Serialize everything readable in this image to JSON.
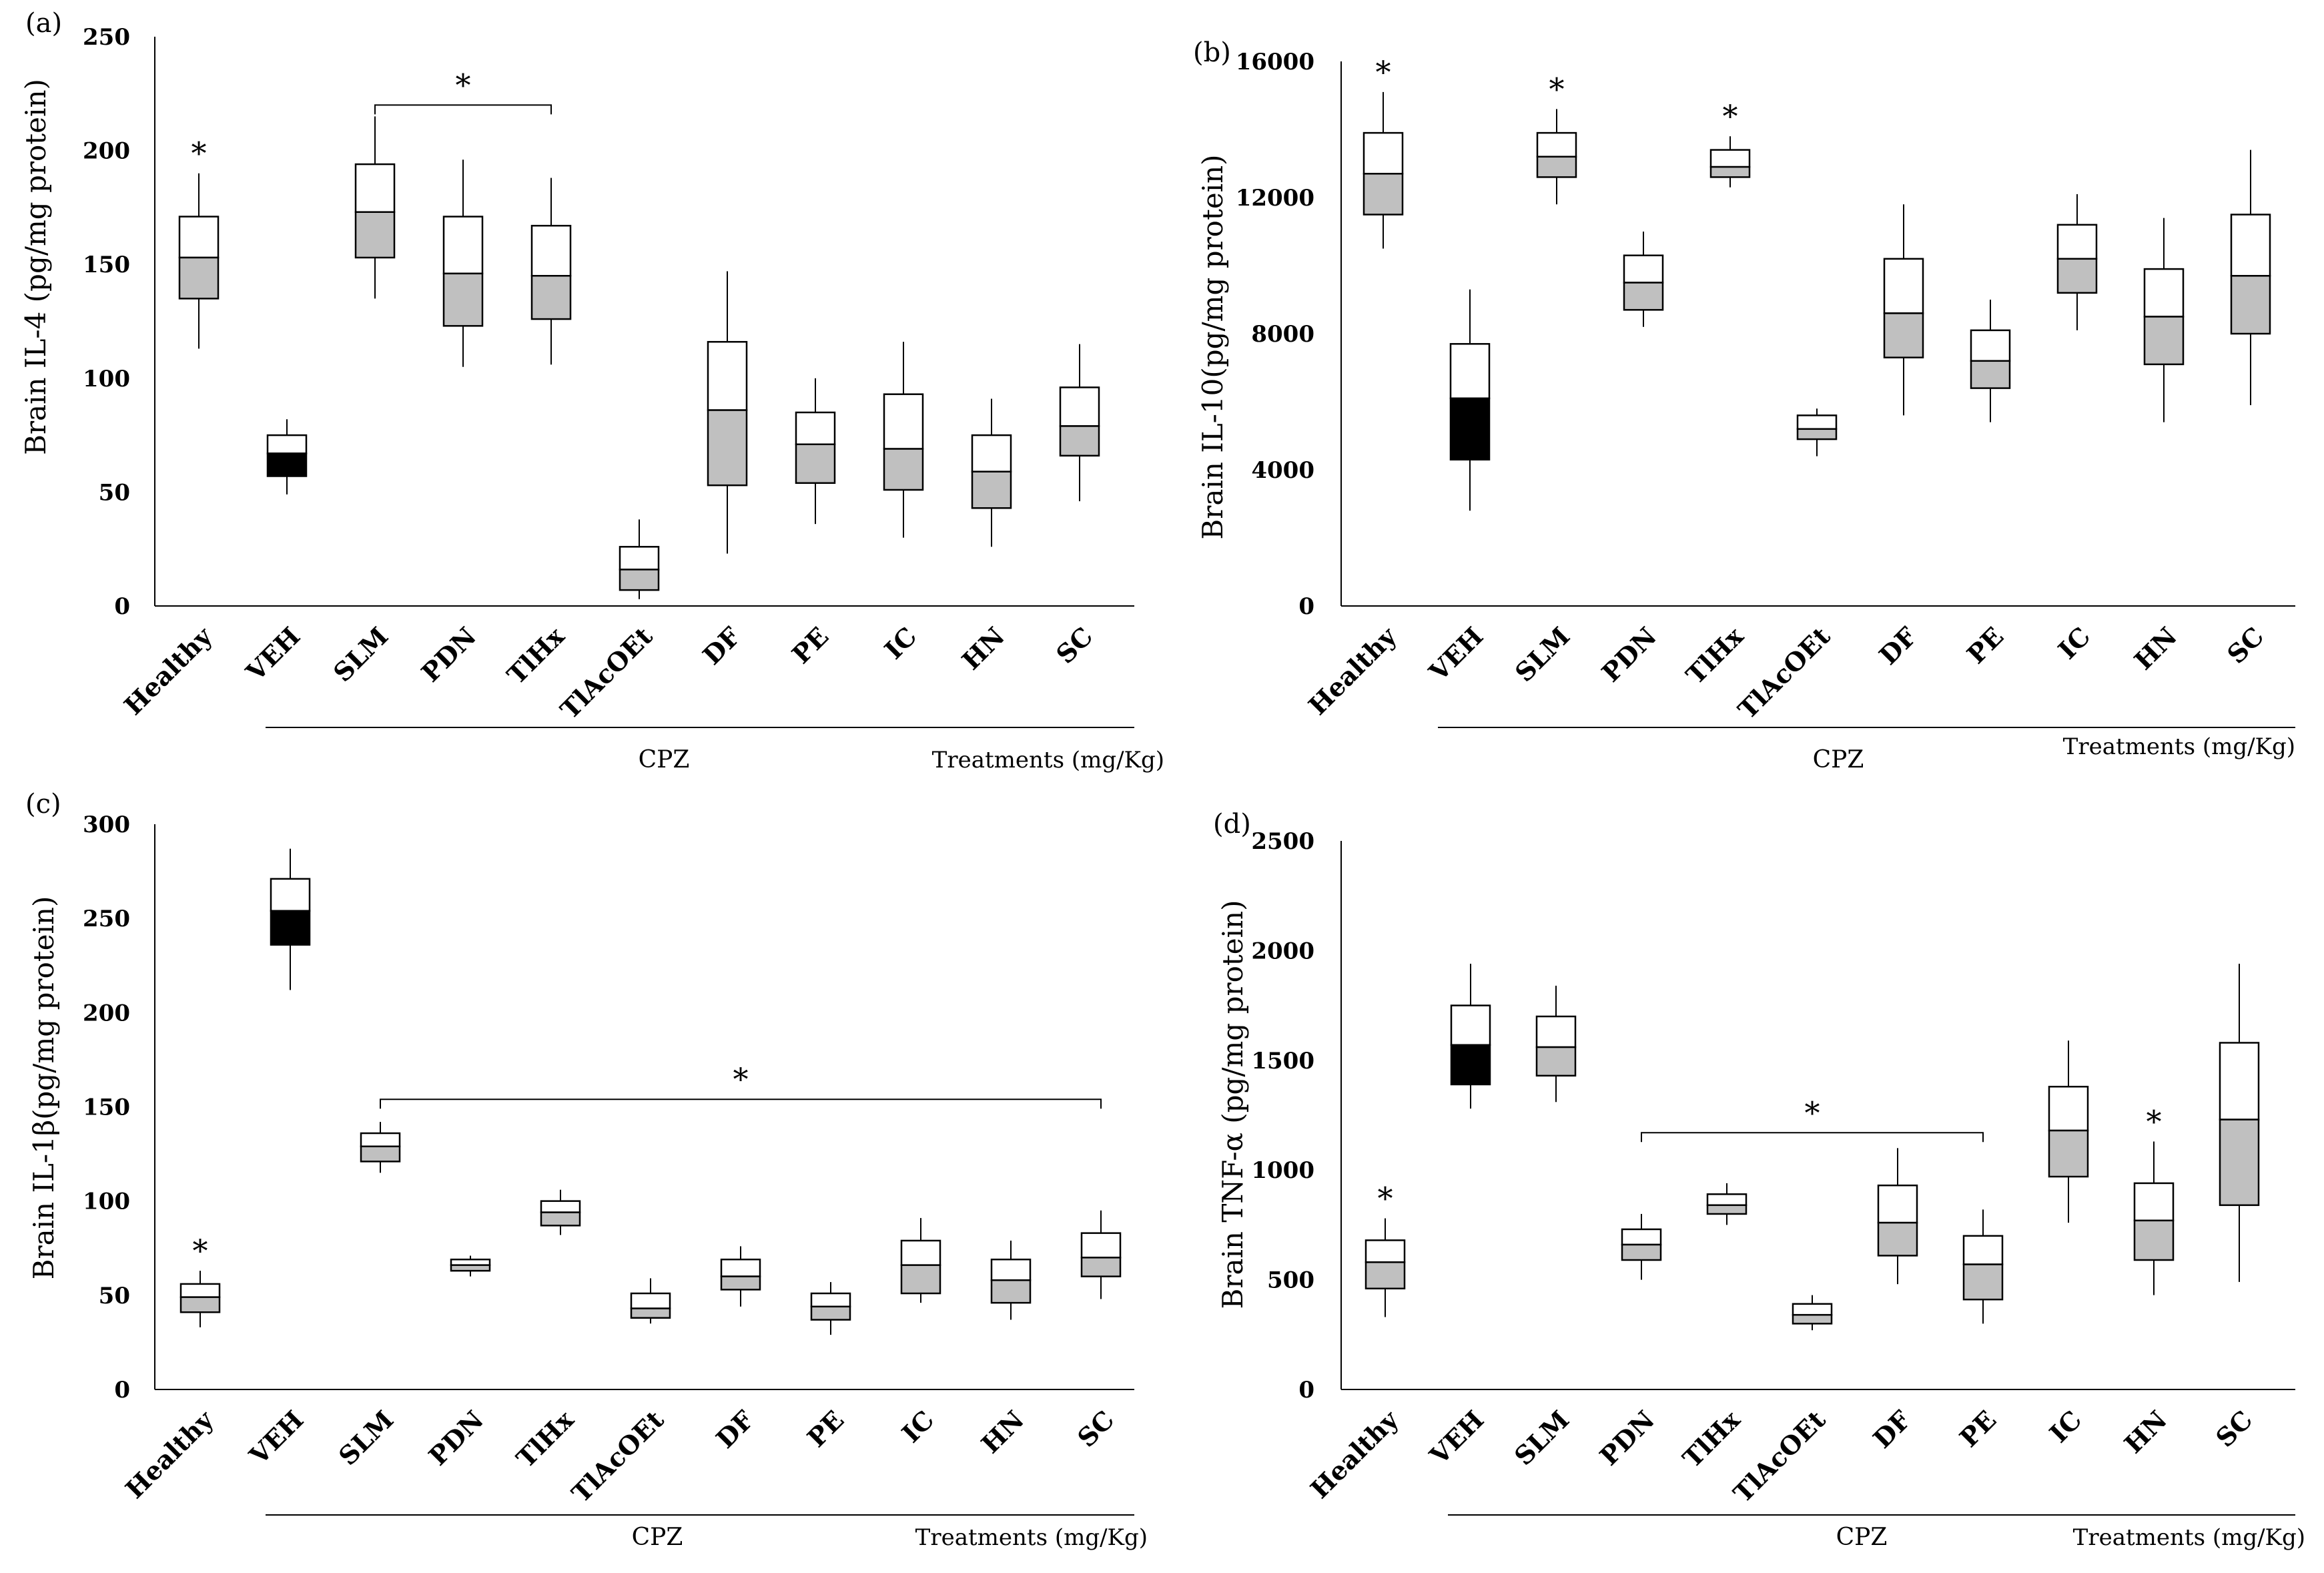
{
  "chart_data": [
    {
      "type": "boxplot",
      "panel_label": "(a)",
      "ylabel": "Brain IL-4 (pg/mg protein)",
      "ylim": [
        0,
        250
      ],
      "yticks": [
        "250",
        "200",
        "150",
        "100",
        "50",
        "0"
      ],
      "categories": [
        "Healthy",
        "VEH",
        "SLM",
        "PDN",
        "TlHx",
        "TlAcOEt",
        "DF",
        "PE",
        "IC",
        "HN",
        "SC"
      ],
      "group_label": "CPZ",
      "footnote": "Treatments (mg/Kg)",
      "boxes": [
        {
          "min": 113,
          "q1": 135,
          "median": 153,
          "q3": 171,
          "max": 190,
          "lower_fill": "#c0c0c0"
        },
        {
          "min": 49,
          "q1": 57,
          "median": 67,
          "q3": 75,
          "max": 82,
          "lower_fill": "#000000"
        },
        {
          "min": 135,
          "q1": 153,
          "median": 173,
          "q3": 194,
          "max": 215,
          "lower_fill": "#c0c0c0"
        },
        {
          "min": 105,
          "q1": 123,
          "median": 146,
          "q3": 171,
          "max": 196,
          "lower_fill": "#c0c0c0"
        },
        {
          "min": 106,
          "q1": 126,
          "median": 145,
          "q3": 167,
          "max": 188,
          "lower_fill": "#c0c0c0"
        },
        {
          "min": 3,
          "q1": 7,
          "median": 16,
          "q3": 26,
          "max": 38,
          "lower_fill": "#c0c0c0"
        },
        {
          "min": 23,
          "q1": 53,
          "median": 86,
          "q3": 116,
          "max": 147,
          "lower_fill": "#c0c0c0"
        },
        {
          "min": 36,
          "q1": 54,
          "median": 71,
          "q3": 85,
          "max": 100,
          "lower_fill": "#c0c0c0"
        },
        {
          "min": 30,
          "q1": 51,
          "median": 69,
          "q3": 93,
          "max": 116,
          "lower_fill": "#c0c0c0"
        },
        {
          "min": 26,
          "q1": 43,
          "median": 59,
          "q3": 75,
          "max": 91,
          "lower_fill": "#c0c0c0"
        },
        {
          "min": 46,
          "q1": 66,
          "median": 79,
          "q3": 96,
          "max": 115,
          "lower_fill": "#c0c0c0"
        }
      ],
      "stars": [
        {
          "index": 0,
          "label": "*"
        }
      ],
      "brackets": [
        {
          "from": 2,
          "to": 4,
          "level": 220,
          "label": "*"
        }
      ]
    },
    {
      "type": "boxplot",
      "panel_label": "(b)",
      "ylabel": "Brain IL-10(pg/mg protein)",
      "ylim": [
        0,
        16000
      ],
      "yticks": [
        "16000",
        "12000",
        "8000",
        "4000",
        "0"
      ],
      "categories": [
        "Healthy",
        "VEH",
        "SLM",
        "PDN",
        "TlHx",
        "TlAcOEt",
        "DF",
        "PE",
        "IC",
        "HN",
        "SC"
      ],
      "group_label": "CPZ",
      "footnote": "Treatments (mg/Kg)",
      "boxes": [
        {
          "min": 10500,
          "q1": 11500,
          "median": 12700,
          "q3": 13900,
          "max": 15100,
          "lower_fill": "#c0c0c0"
        },
        {
          "min": 2800,
          "q1": 4300,
          "median": 6100,
          "q3": 7700,
          "max": 9300,
          "lower_fill": "#000000"
        },
        {
          "min": 11800,
          "q1": 12600,
          "median": 13200,
          "q3": 13900,
          "max": 14600,
          "lower_fill": "#c0c0c0"
        },
        {
          "min": 8200,
          "q1": 8700,
          "median": 9500,
          "q3": 10300,
          "max": 11000,
          "lower_fill": "#c0c0c0"
        },
        {
          "min": 12300,
          "q1": 12600,
          "median": 12900,
          "q3": 13400,
          "max": 13800,
          "lower_fill": "#c0c0c0"
        },
        {
          "min": 4400,
          "q1": 4900,
          "median": 5200,
          "q3": 5600,
          "max": 5800,
          "lower_fill": "#c0c0c0"
        },
        {
          "min": 5600,
          "q1": 7300,
          "median": 8600,
          "q3": 10200,
          "max": 11800,
          "lower_fill": "#c0c0c0"
        },
        {
          "min": 5400,
          "q1": 6400,
          "median": 7200,
          "q3": 8100,
          "max": 9000,
          "lower_fill": "#c0c0c0"
        },
        {
          "min": 8100,
          "q1": 9200,
          "median": 10200,
          "q3": 11200,
          "max": 12100,
          "lower_fill": "#c0c0c0"
        },
        {
          "min": 5400,
          "q1": 7100,
          "median": 8500,
          "q3": 9900,
          "max": 11400,
          "lower_fill": "#c0c0c0"
        },
        {
          "min": 5900,
          "q1": 8000,
          "median": 9700,
          "q3": 11500,
          "max": 13400,
          "lower_fill": "#c0c0c0"
        }
      ],
      "stars": [
        {
          "index": 0,
          "label": "*"
        },
        {
          "index": 2,
          "label": "*"
        },
        {
          "index": 4,
          "label": "*"
        }
      ],
      "brackets": []
    },
    {
      "type": "boxplot",
      "panel_label": "(c)",
      "ylabel": "Brain IL-1β(pg/mg protein)",
      "ylim": [
        0,
        300
      ],
      "yticks": [
        "300",
        "250",
        "200",
        "150",
        "100",
        "50",
        "0"
      ],
      "categories": [
        "Healthy",
        "VEH",
        "SLM",
        "PDN",
        "TlHx",
        "TlAcOEt",
        "DF",
        "PE",
        "IC",
        "HN",
        "SC"
      ],
      "group_label": "CPZ",
      "footnote": "Treatments (mg/Kg)",
      "boxes": [
        {
          "min": 33,
          "q1": 41,
          "median": 49,
          "q3": 56,
          "max": 63,
          "lower_fill": "#c0c0c0"
        },
        {
          "min": 212,
          "q1": 236,
          "median": 254,
          "q3": 271,
          "max": 287,
          "lower_fill": "#000000"
        },
        {
          "min": 115,
          "q1": 121,
          "median": 129,
          "q3": 136,
          "max": 142,
          "lower_fill": "#c0c0c0"
        },
        {
          "min": 60,
          "q1": 63,
          "median": 66,
          "q3": 69,
          "max": 71,
          "lower_fill": "#c0c0c0"
        },
        {
          "min": 82,
          "q1": 87,
          "median": 94,
          "q3": 100,
          "max": 106,
          "lower_fill": "#c0c0c0"
        },
        {
          "min": 35,
          "q1": 38,
          "median": 43,
          "q3": 51,
          "max": 59,
          "lower_fill": "#c0c0c0"
        },
        {
          "min": 44,
          "q1": 53,
          "median": 60,
          "q3": 69,
          "max": 76,
          "lower_fill": "#c0c0c0"
        },
        {
          "min": 29,
          "q1": 37,
          "median": 44,
          "q3": 51,
          "max": 57,
          "lower_fill": "#c0c0c0"
        },
        {
          "min": 46,
          "q1": 51,
          "median": 66,
          "q3": 79,
          "max": 91,
          "lower_fill": "#c0c0c0"
        },
        {
          "min": 37,
          "q1": 46,
          "median": 58,
          "q3": 69,
          "max": 79,
          "lower_fill": "#c0c0c0"
        },
        {
          "min": 48,
          "q1": 60,
          "median": 70,
          "q3": 83,
          "max": 95,
          "lower_fill": "#c0c0c0"
        }
      ],
      "stars": [
        {
          "index": 0,
          "label": "*"
        }
      ],
      "brackets": [
        {
          "from": 2,
          "to": 10,
          "level": 154,
          "label": "*"
        }
      ]
    },
    {
      "type": "boxplot",
      "panel_label": "(d)",
      "ylabel": "Brain TNF-α (pg/mg protein)",
      "ylim": [
        0,
        2500
      ],
      "yticks": [
        "2500",
        "2000",
        "1500",
        "1000",
        "500",
        "0"
      ],
      "categories": [
        "Healthy",
        "VEH",
        "SLM",
        "PDN",
        "TlHx",
        "TlAcOEt",
        "DF",
        "PE",
        "IC",
        "HN",
        "SC"
      ],
      "group_label": "CPZ",
      "footnote": "Treatments (mg/Kg)",
      "boxes": [
        {
          "min": 330,
          "q1": 460,
          "median": 580,
          "q3": 680,
          "max": 780,
          "lower_fill": "#c0c0c0"
        },
        {
          "min": 1280,
          "q1": 1390,
          "median": 1570,
          "q3": 1750,
          "max": 1940,
          "lower_fill": "#000000"
        },
        {
          "min": 1310,
          "q1": 1430,
          "median": 1560,
          "q3": 1700,
          "max": 1840,
          "lower_fill": "#c0c0c0"
        },
        {
          "min": 500,
          "q1": 590,
          "median": 660,
          "q3": 730,
          "max": 800,
          "lower_fill": "#c0c0c0"
        },
        {
          "min": 750,
          "q1": 800,
          "median": 840,
          "q3": 890,
          "max": 940,
          "lower_fill": "#c0c0c0"
        },
        {
          "min": 270,
          "q1": 300,
          "median": 340,
          "q3": 390,
          "max": 430,
          "lower_fill": "#c0c0c0"
        },
        {
          "min": 480,
          "q1": 610,
          "median": 760,
          "q3": 930,
          "max": 1100,
          "lower_fill": "#c0c0c0"
        },
        {
          "min": 300,
          "q1": 410,
          "median": 570,
          "q3": 700,
          "max": 820,
          "lower_fill": "#c0c0c0"
        },
        {
          "min": 760,
          "q1": 970,
          "median": 1180,
          "q3": 1380,
          "max": 1590,
          "lower_fill": "#c0c0c0"
        },
        {
          "min": 430,
          "q1": 590,
          "median": 770,
          "q3": 940,
          "max": 1130,
          "lower_fill": "#c0c0c0"
        },
        {
          "min": 490,
          "q1": 840,
          "median": 1230,
          "q3": 1580,
          "max": 1940,
          "lower_fill": "#c0c0c0"
        }
      ],
      "stars": [
        {
          "index": 0,
          "label": "*"
        },
        {
          "index": 9,
          "label": "*"
        }
      ],
      "brackets": [
        {
          "from": 3,
          "to": 7,
          "level": 1170,
          "label": "*"
        }
      ]
    }
  ],
  "colors": {
    "box_upper": "#ffffff",
    "stroke": "#000000"
  }
}
